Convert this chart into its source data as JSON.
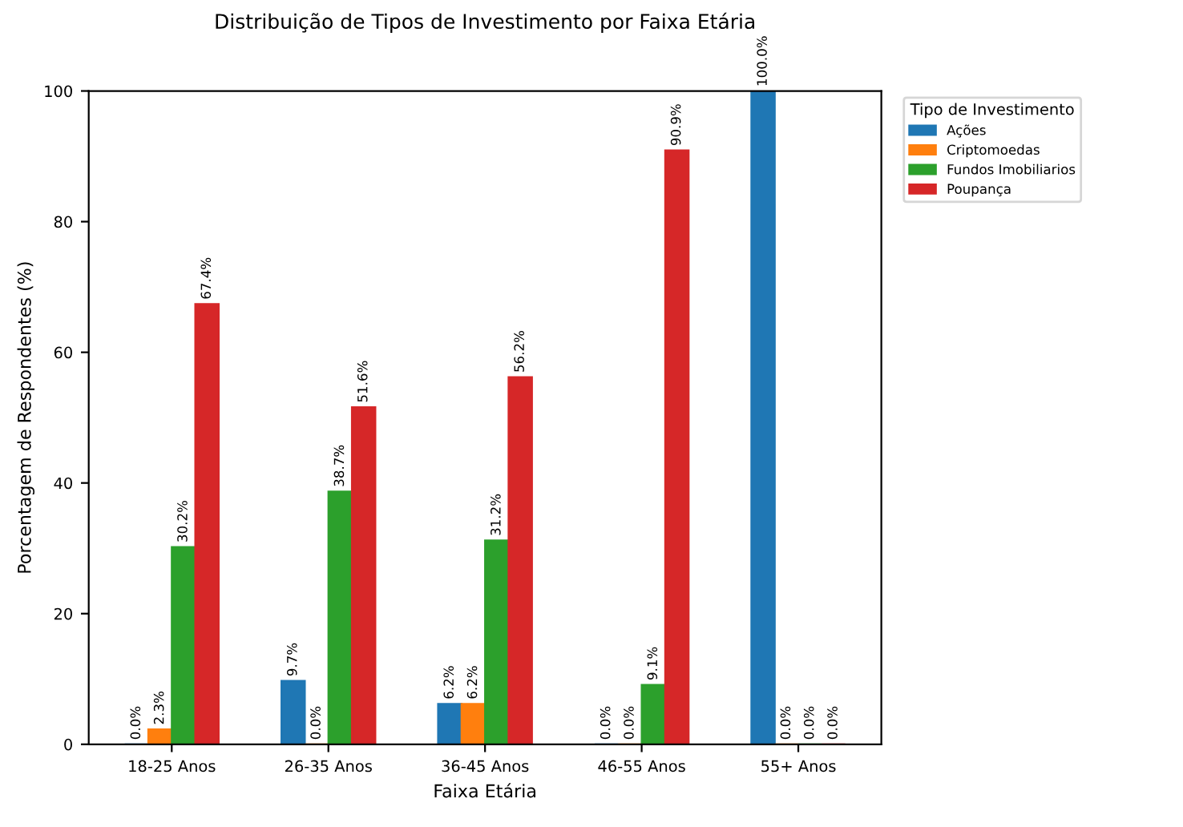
{
  "chart_data": {
    "type": "bar",
    "title": "Distribuição de Tipos de Investimento por Faixa Etária",
    "xlabel": "Faixa Etária",
    "ylabel": "Porcentagem de Respondentes (%)",
    "legend_title": "Tipo de Investimento",
    "legend": "top right",
    "categories": [
      "18-25 Anos",
      "26-35 Anos",
      "36-45 Anos",
      "46-55 Anos",
      "55+ Anos"
    ],
    "ylim": [
      0,
      100
    ],
    "yticks": [
      0,
      20,
      40,
      60,
      80,
      100
    ],
    "grid": false,
    "series": [
      {
        "name": "Ações",
        "color": "#1f77b4",
        "values": [
          0.0,
          9.7,
          6.2,
          0.0,
          100.0
        ],
        "value_labels": [
          "0.0%",
          "9.7%",
          "6.2%",
          "0.0%",
          "100.0%"
        ]
      },
      {
        "name": "Criptomoedas",
        "color": "#ff7f0e",
        "values": [
          2.3,
          0.0,
          6.2,
          0.0,
          0.0
        ],
        "value_labels": [
          "2.3%",
          "0.0%",
          "6.2%",
          "0.0%",
          "0.0%"
        ]
      },
      {
        "name": "Fundos Imobiliarios",
        "color": "#2ca02c",
        "values": [
          30.2,
          38.7,
          31.2,
          9.1,
          0.0
        ],
        "value_labels": [
          "30.2%",
          "38.7%",
          "31.2%",
          "9.1%",
          "0.0%"
        ]
      },
      {
        "name": "Poupança",
        "color": "#d62728",
        "values": [
          67.4,
          51.6,
          56.2,
          90.9,
          0.0
        ],
        "value_labels": [
          "67.4%",
          "51.6%",
          "56.2%",
          "90.9%",
          "0.0%"
        ]
      }
    ]
  }
}
